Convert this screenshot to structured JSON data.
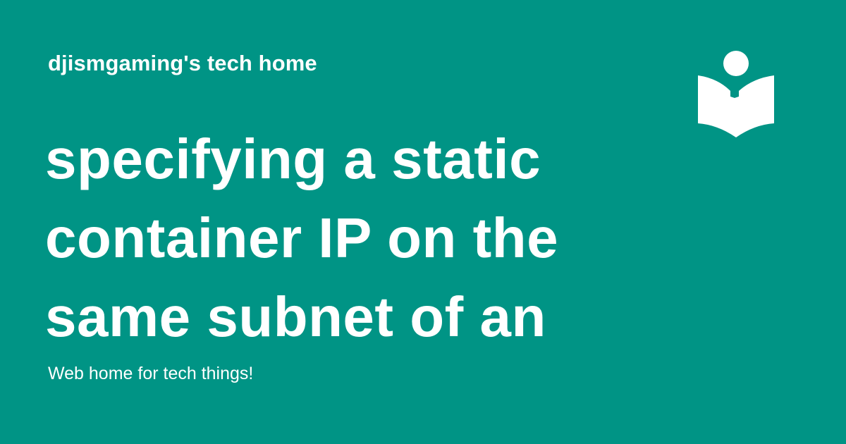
{
  "header": {
    "site_name": "djismgaming's tech home",
    "logo_icon": "reader-book-icon"
  },
  "main": {
    "title": "specifying a static container IP on the same subnet of an"
  },
  "footer": {
    "tagline": "Web home for tech things!"
  },
  "colors": {
    "background": "#009485",
    "text": "#ffffff"
  }
}
